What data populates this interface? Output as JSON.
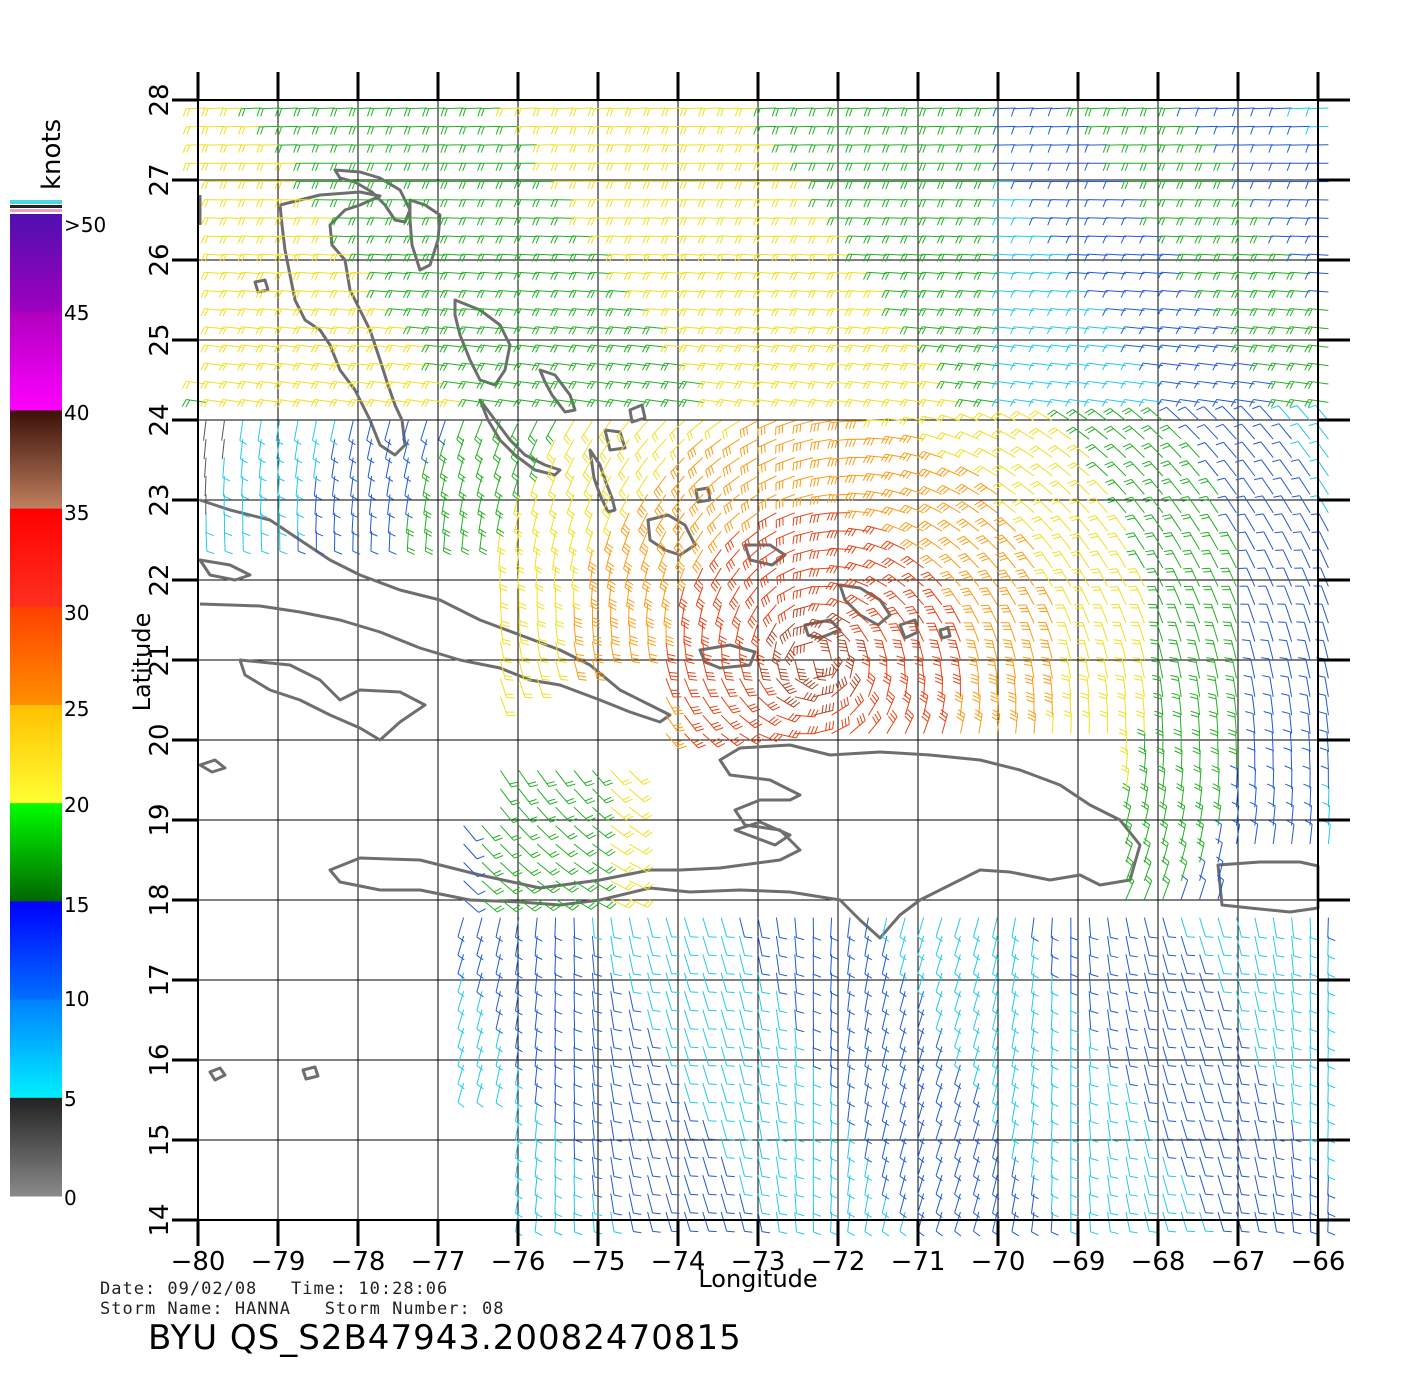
{
  "map": {
    "x_axis_label": "Longitude",
    "y_axis_label": "Latitude",
    "x_ticks": [
      "−80",
      "−79",
      "−78",
      "−77",
      "−76",
      "−75",
      "−74",
      "−73",
      "−72",
      "−71",
      "−70",
      "−69",
      "−68",
      "−67",
      "−66"
    ],
    "y_ticks": [
      "14",
      "15",
      "16",
      "17",
      "18",
      "19",
      "20",
      "21",
      "22",
      "23",
      "24",
      "25",
      "26",
      "27",
      "28"
    ],
    "lon_range": [
      -80,
      -66
    ],
    "lat_range": [
      14,
      28
    ]
  },
  "legend": {
    "title": "knots",
    "labels": [
      ">50",
      "45",
      "40",
      "35",
      "30",
      "25",
      "20",
      "15",
      "10",
      "5",
      "0"
    ],
    "bands": [
      {
        "name": "0-5",
        "colors": [
          "#8a8a8a",
          "#222222"
        ]
      },
      {
        "name": "5-10",
        "colors": [
          "#00f0ff",
          "#0080ff"
        ]
      },
      {
        "name": "10-15",
        "colors": [
          "#0070ff",
          "#0000ff"
        ]
      },
      {
        "name": "15-20",
        "colors": [
          "#006600",
          "#00ff00"
        ]
      },
      {
        "name": "20-25",
        "colors": [
          "#ffff33",
          "#ffc000"
        ]
      },
      {
        "name": "25-30",
        "colors": [
          "#ff9000",
          "#ff4000"
        ]
      },
      {
        "name": "30-35",
        "colors": [
          "#ff3020",
          "#ff0000"
        ]
      },
      {
        "name": "35-40",
        "colors": [
          "#c08060",
          "#3a1008"
        ]
      },
      {
        "name": "40-45",
        "colors": [
          "#ff00ff",
          "#b000c0"
        ]
      },
      {
        "name": "45-50",
        "colors": [
          "#a000c0",
          "#5010b0"
        ]
      }
    ]
  },
  "footer": {
    "date_line": "Date: 09/02/08   Time: 10:28:06",
    "storm_line": "Storm Name: HANNA   Storm Number: 08",
    "product_id": "BYU QS_S2B47943.20082470815"
  }
}
